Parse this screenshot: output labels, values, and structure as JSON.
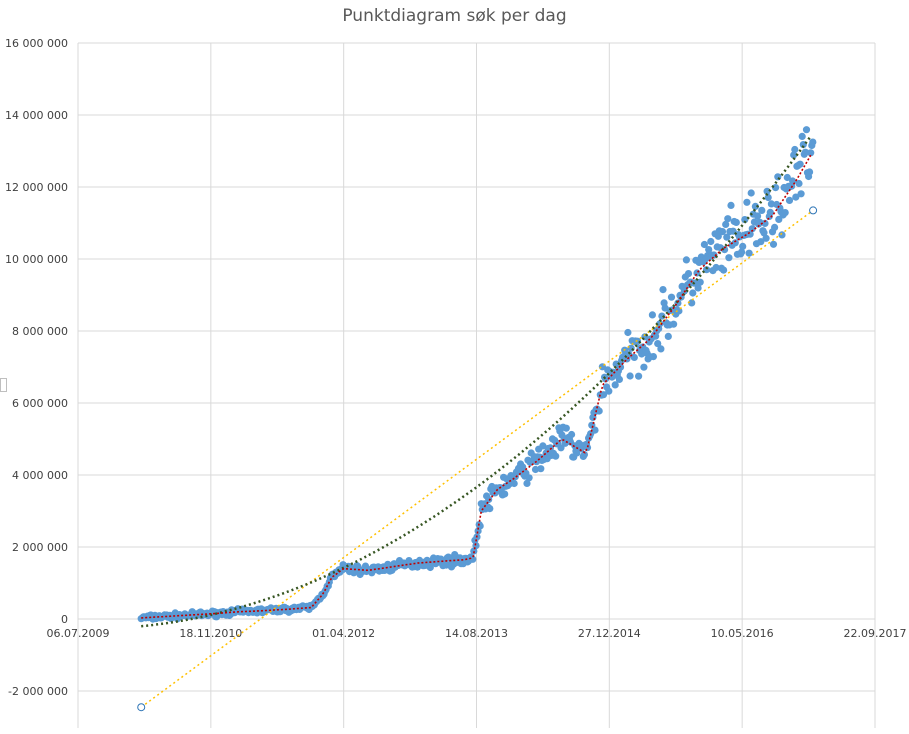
{
  "chart_data": {
    "type": "scatter",
    "title": "Punktdiagram søk per dag",
    "xlabel": "",
    "ylabel": "",
    "x_ticks": [
      "06.07.2009",
      "18.11.2010",
      "01.04.2012",
      "14.08.2013",
      "27.12.2014",
      "10.05.2016",
      "22.09.2017"
    ],
    "x_range": [
      "2009-07-06",
      "2017-09-22"
    ],
    "y_ticks": [
      "-2 000 000",
      "0",
      "2 000 000",
      "4 000 000",
      "6 000 000",
      "8 000 000",
      "10 000 000",
      "12 000 000",
      "14 000 000",
      "16 000 000"
    ],
    "ylim": [
      -3000000,
      16000000
    ],
    "grid": true,
    "legend": "none",
    "colors": {
      "points": "#5b9bd5",
      "moving_average": "#c00000",
      "poly_trend": "#375623",
      "linear_trend": "#ffc000",
      "grid": "#d9d9d9"
    },
    "series": [
      {
        "values_approx": [
          [
            "2010-03-01",
            30000
          ],
          [
            "2010-06-01",
            70000
          ],
          [
            "2010-09-01",
            110000
          ],
          [
            "2010-12-01",
            150000
          ],
          [
            "2011-03-01",
            200000
          ],
          [
            "2011-06-01",
            230000
          ],
          [
            "2011-09-01",
            270000
          ],
          [
            "2011-12-01",
            320000
          ],
          [
            "2012-01-15",
            700000
          ],
          [
            "2012-02-15",
            1150000
          ],
          [
            "2012-04-01",
            1400000
          ],
          [
            "2012-07-01",
            1350000
          ],
          [
            "2012-10-01",
            1450000
          ],
          [
            "2013-01-01",
            1550000
          ],
          [
            "2013-04-01",
            1600000
          ],
          [
            "2013-07-01",
            1650000
          ],
          [
            "2013-08-01",
            1700000
          ],
          [
            "2013-09-01",
            3000000
          ],
          [
            "2013-11-01",
            3600000
          ],
          [
            "2014-01-01",
            3900000
          ],
          [
            "2014-04-01",
            4400000
          ],
          [
            "2014-07-01",
            5000000
          ],
          [
            "2014-10-01",
            4600000
          ],
          [
            "2014-12-01",
            6500000
          ],
          [
            "2015-03-01",
            7200000
          ],
          [
            "2015-06-01",
            7800000
          ],
          [
            "2015-09-01",
            8700000
          ],
          [
            "2015-12-01",
            9700000
          ],
          [
            "2016-03-01",
            10300000
          ],
          [
            "2016-06-01",
            10700000
          ],
          [
            "2016-09-01",
            11200000
          ],
          [
            "2016-12-01",
            12200000
          ],
          [
            "2017-02-01",
            13000000
          ]
        ]
      }
    ],
    "annotations": [
      {
        "x": "2010-03-01",
        "y": -2450000
      },
      {
        "x": "2017-02-01",
        "y": 11350000
      }
    ]
  }
}
